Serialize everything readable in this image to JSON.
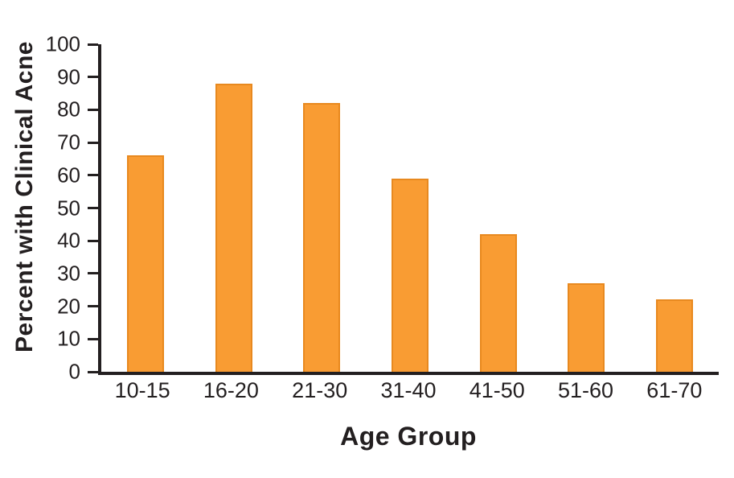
{
  "chart_data": {
    "type": "bar",
    "categories": [
      "10-15",
      "16-20",
      "21-30",
      "31-40",
      "41-50",
      "51-60",
      "61-70"
    ],
    "values": [
      66,
      88,
      82,
      59,
      42,
      27,
      22
    ],
    "title": "",
    "xlabel": "Age Group",
    "ylabel": "Percent with Clinical Acne",
    "ylim": [
      0,
      100
    ],
    "ytick_step": 10,
    "yticks": [
      0,
      10,
      20,
      30,
      40,
      50,
      60,
      70,
      80,
      90,
      100
    ],
    "grid": false,
    "legend": "none",
    "bar_color": "#F99C33",
    "bar_border_color": "#E8891F",
    "axis_color": "#231F20"
  }
}
